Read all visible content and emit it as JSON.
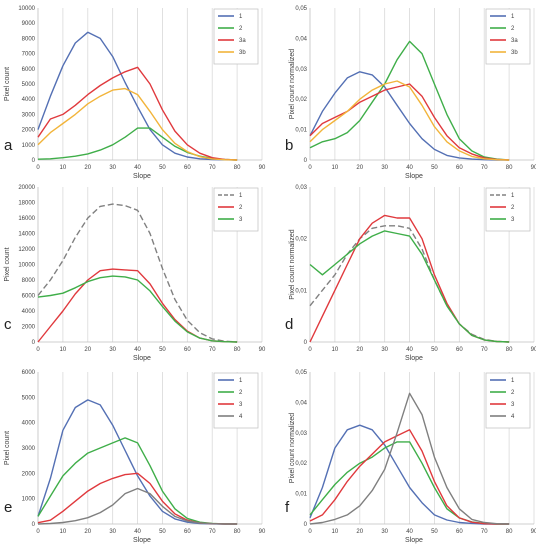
{
  "chart_data": [
    {
      "panel_label": "a",
      "type": "line",
      "xlabel": "Slope",
      "ylabel": "Pixel count",
      "xlim": [
        0,
        90
      ],
      "ylim": [
        0,
        10000
      ],
      "xticks": [
        "0",
        "10",
        "20",
        "30",
        "40",
        "50",
        "60",
        "70",
        "80",
        "90"
      ],
      "yticks": [
        "0",
        "1000",
        "2000",
        "3000",
        "4000",
        "5000",
        "6000",
        "7000",
        "8000",
        "9000",
        "10000"
      ],
      "grid": "vertical",
      "legend": "top-right",
      "series": [
        {
          "name": "1",
          "color": "#5470b4",
          "x": [
            0,
            5,
            10,
            15,
            20,
            25,
            30,
            35,
            40,
            45,
            50,
            55,
            60,
            65,
            70,
            75,
            80
          ],
          "y": [
            2000,
            4200,
            6200,
            7700,
            8400,
            8000,
            6800,
            5100,
            3500,
            2000,
            1000,
            450,
            200,
            80,
            30,
            10,
            0
          ]
        },
        {
          "name": "2",
          "color": "#3fae49",
          "x": [
            0,
            5,
            10,
            15,
            20,
            25,
            30,
            35,
            40,
            45,
            50,
            55,
            60,
            65,
            70,
            75,
            80
          ],
          "y": [
            50,
            80,
            150,
            250,
            400,
            650,
            1000,
            1500,
            2100,
            2100,
            1500,
            900,
            500,
            250,
            100,
            30,
            0
          ]
        },
        {
          "name": "3a",
          "color": "#e0393d",
          "x": [
            0,
            5,
            10,
            15,
            20,
            25,
            30,
            35,
            40,
            45,
            50,
            55,
            60,
            65,
            70,
            75,
            80
          ],
          "y": [
            1500,
            2700,
            3000,
            3600,
            4300,
            4900,
            5400,
            5800,
            6100,
            5000,
            3300,
            1900,
            1000,
            450,
            150,
            40,
            0
          ]
        },
        {
          "name": "3b",
          "color": "#f2b43a",
          "x": [
            0,
            5,
            10,
            15,
            20,
            25,
            30,
            35,
            40,
            45,
            50,
            55,
            60,
            65,
            70,
            75,
            80
          ],
          "y": [
            1000,
            1800,
            2400,
            3000,
            3700,
            4200,
            4600,
            4700,
            4300,
            3200,
            2000,
            1100,
            550,
            220,
            70,
            20,
            0
          ]
        }
      ]
    },
    {
      "panel_label": "b",
      "type": "line",
      "xlabel": "Slope",
      "ylabel": "Pixel count normalized",
      "xlim": [
        0,
        90
      ],
      "ylim": [
        0,
        0.05
      ],
      "xticks": [
        "0",
        "10",
        "20",
        "30",
        "40",
        "50",
        "60",
        "70",
        "80",
        "90"
      ],
      "yticks": [
        "0",
        "0,01",
        "0,02",
        "0,03",
        "0,04",
        "0,05"
      ],
      "grid": "vertical",
      "legend": "top-right",
      "series": [
        {
          "name": "1",
          "color": "#5470b4",
          "x": [
            0,
            5,
            10,
            15,
            20,
            25,
            30,
            35,
            40,
            45,
            50,
            55,
            60,
            65,
            70,
            75,
            80
          ],
          "y": [
            0.008,
            0.016,
            0.022,
            0.027,
            0.029,
            0.028,
            0.024,
            0.018,
            0.012,
            0.007,
            0.0035,
            0.0015,
            0.0007,
            0.0003,
            0.0001,
            0,
            0
          ]
        },
        {
          "name": "2",
          "color": "#3fae49",
          "x": [
            0,
            5,
            10,
            15,
            20,
            25,
            30,
            35,
            40,
            45,
            50,
            55,
            60,
            65,
            70,
            75,
            80
          ],
          "y": [
            0.004,
            0.006,
            0.007,
            0.009,
            0.013,
            0.019,
            0.025,
            0.033,
            0.039,
            0.035,
            0.025,
            0.015,
            0.007,
            0.003,
            0.001,
            0.0003,
            0
          ]
        },
        {
          "name": "3a",
          "color": "#e0393d",
          "x": [
            0,
            5,
            10,
            15,
            20,
            25,
            30,
            35,
            40,
            45,
            50,
            55,
            60,
            65,
            70,
            75,
            80
          ],
          "y": [
            0.008,
            0.012,
            0.014,
            0.016,
            0.019,
            0.021,
            0.023,
            0.024,
            0.025,
            0.021,
            0.014,
            0.008,
            0.004,
            0.002,
            0.0007,
            0.0002,
            0
          ]
        },
        {
          "name": "3b",
          "color": "#f2b43a",
          "x": [
            0,
            5,
            10,
            15,
            20,
            25,
            30,
            35,
            40,
            45,
            50,
            55,
            60,
            65,
            70,
            75,
            80
          ],
          "y": [
            0.006,
            0.01,
            0.013,
            0.016,
            0.02,
            0.023,
            0.025,
            0.026,
            0.024,
            0.018,
            0.011,
            0.006,
            0.003,
            0.0012,
            0.0004,
            0.0001,
            0
          ]
        }
      ]
    },
    {
      "panel_label": "c",
      "type": "line",
      "xlabel": "Slope",
      "ylabel": "Pixel count",
      "xlim": [
        0,
        90
      ],
      "ylim": [
        0,
        20000
      ],
      "xticks": [
        "0",
        "10",
        "20",
        "30",
        "40",
        "50",
        "60",
        "70",
        "80",
        "90"
      ],
      "yticks": [
        "0",
        "2000",
        "4000",
        "6000",
        "8000",
        "10000",
        "12000",
        "14000",
        "16000",
        "18000",
        "20000"
      ],
      "grid": "vertical",
      "legend": "top-right",
      "series": [
        {
          "name": "1",
          "color": "#808080",
          "dash": true,
          "x": [
            0,
            5,
            10,
            15,
            20,
            25,
            30,
            35,
            40,
            45,
            50,
            55,
            60,
            65,
            70,
            75,
            80
          ],
          "y": [
            6000,
            8000,
            10500,
            13500,
            16000,
            17500,
            17800,
            17600,
            17000,
            14000,
            9500,
            5500,
            2800,
            1200,
            400,
            100,
            0
          ]
        },
        {
          "name": "2",
          "color": "#e0393d",
          "x": [
            0,
            5,
            10,
            15,
            20,
            25,
            30,
            35,
            40,
            45,
            50,
            55,
            60,
            65,
            70,
            75,
            80
          ],
          "y": [
            0,
            2000,
            4000,
            6200,
            8000,
            9200,
            9400,
            9300,
            9200,
            7500,
            5000,
            2900,
            1400,
            500,
            150,
            40,
            0
          ]
        },
        {
          "name": "3",
          "color": "#3fae49",
          "x": [
            0,
            5,
            10,
            15,
            20,
            25,
            30,
            35,
            40,
            45,
            50,
            55,
            60,
            65,
            70,
            75,
            80
          ],
          "y": [
            5800,
            6000,
            6300,
            7000,
            7800,
            8300,
            8500,
            8400,
            8000,
            6600,
            4600,
            2700,
            1300,
            500,
            150,
            40,
            0
          ]
        }
      ]
    },
    {
      "panel_label": "d",
      "type": "line",
      "xlabel": "Slope",
      "ylabel": "Pixel count normalized",
      "xlim": [
        0,
        90
      ],
      "ylim": [
        0,
        0.03
      ],
      "xticks": [
        "0",
        "10",
        "20",
        "30",
        "40",
        "50",
        "60",
        "70",
        "80",
        "90"
      ],
      "yticks": [
        "0",
        "0,01",
        "0,02",
        "0,03"
      ],
      "grid": "vertical",
      "legend": "top-right",
      "series": [
        {
          "name": "1",
          "color": "#808080",
          "dash": true,
          "x": [
            0,
            5,
            10,
            15,
            20,
            25,
            30,
            35,
            40,
            45,
            50,
            55,
            60,
            65,
            70,
            75,
            80
          ],
          "y": [
            0.007,
            0.01,
            0.013,
            0.017,
            0.02,
            0.022,
            0.0225,
            0.0225,
            0.022,
            0.018,
            0.012,
            0.007,
            0.0035,
            0.0015,
            0.0005,
            0.0001,
            0
          ]
        },
        {
          "name": "2",
          "color": "#e0393d",
          "x": [
            0,
            5,
            10,
            15,
            20,
            25,
            30,
            35,
            40,
            45,
            50,
            55,
            60,
            65,
            70,
            75,
            80
          ],
          "y": [
            0,
            0.005,
            0.01,
            0.015,
            0.02,
            0.023,
            0.0245,
            0.024,
            0.024,
            0.02,
            0.013,
            0.0075,
            0.0035,
            0.0013,
            0.0004,
            0.0001,
            0
          ]
        },
        {
          "name": "3",
          "color": "#3fae49",
          "x": [
            0,
            5,
            10,
            15,
            20,
            25,
            30,
            35,
            40,
            45,
            50,
            55,
            60,
            65,
            70,
            75,
            80
          ],
          "y": [
            0.015,
            0.013,
            0.015,
            0.017,
            0.019,
            0.0205,
            0.0215,
            0.021,
            0.0205,
            0.017,
            0.012,
            0.007,
            0.0035,
            0.0013,
            0.0004,
            0.0001,
            0
          ]
        }
      ]
    },
    {
      "panel_label": "e",
      "type": "line",
      "xlabel": "Slope",
      "ylabel": "Pixel count",
      "xlim": [
        0,
        90
      ],
      "ylim": [
        0,
        6000
      ],
      "xticks": [
        "0",
        "10",
        "20",
        "30",
        "40",
        "50",
        "60",
        "70",
        "80",
        "90"
      ],
      "yticks": [
        "0",
        "1000",
        "2000",
        "3000",
        "4000",
        "5000",
        "6000"
      ],
      "grid": "vertical",
      "legend": "top-right",
      "series": [
        {
          "name": "1",
          "color": "#5470b4",
          "x": [
            0,
            5,
            10,
            15,
            20,
            25,
            30,
            35,
            40,
            45,
            50,
            55,
            60,
            65,
            70,
            75,
            80
          ],
          "y": [
            300,
            1800,
            3700,
            4600,
            4900,
            4700,
            3900,
            2900,
            1900,
            1100,
            500,
            200,
            70,
            20,
            5,
            0,
            0
          ]
        },
        {
          "name": "2",
          "color": "#3fae49",
          "x": [
            0,
            5,
            10,
            15,
            20,
            25,
            30,
            35,
            40,
            45,
            50,
            55,
            60,
            65,
            70,
            75,
            80
          ],
          "y": [
            300,
            1100,
            1900,
            2400,
            2800,
            3000,
            3200,
            3400,
            3200,
            2300,
            1300,
            600,
            220,
            70,
            20,
            5,
            0
          ]
        },
        {
          "name": "3",
          "color": "#e0393d",
          "x": [
            0,
            5,
            10,
            15,
            20,
            25,
            30,
            35,
            40,
            45,
            50,
            55,
            60,
            65,
            70,
            75,
            80
          ],
          "y": [
            50,
            150,
            500,
            900,
            1300,
            1600,
            1800,
            1950,
            2000,
            1600,
            900,
            400,
            150,
            40,
            10,
            0,
            0
          ]
        },
        {
          "name": "4",
          "color": "#7f7f7f",
          "x": [
            0,
            5,
            10,
            15,
            20,
            25,
            30,
            35,
            40,
            45,
            50,
            55,
            60,
            65,
            70,
            75,
            80
          ],
          "y": [
            0,
            20,
            60,
            130,
            250,
            450,
            750,
            1200,
            1400,
            1200,
            700,
            300,
            120,
            40,
            10,
            0,
            0
          ]
        }
      ]
    },
    {
      "panel_label": "f",
      "type": "line",
      "xlabel": "Slope",
      "ylabel": "Pixel count normalized",
      "xlim": [
        0,
        90
      ],
      "ylim": [
        0,
        0.05
      ],
      "xticks": [
        "0",
        "10",
        "20",
        "30",
        "40",
        "50",
        "60",
        "70",
        "80",
        "90"
      ],
      "yticks": [
        "0",
        "0,01",
        "0,02",
        "0,03",
        "0,04",
        "0,05"
      ],
      "grid": "vertical",
      "legend": "top-right",
      "series": [
        {
          "name": "1",
          "color": "#5470b4",
          "x": [
            0,
            5,
            10,
            15,
            20,
            25,
            30,
            35,
            40,
            45,
            50,
            55,
            60,
            65,
            70,
            75,
            80
          ],
          "y": [
            0.002,
            0.012,
            0.025,
            0.031,
            0.0325,
            0.031,
            0.026,
            0.019,
            0.012,
            0.007,
            0.003,
            0.0013,
            0.0005,
            0.0002,
            0,
            0,
            0
          ]
        },
        {
          "name": "2",
          "color": "#3fae49",
          "x": [
            0,
            5,
            10,
            15,
            20,
            25,
            30,
            35,
            40,
            45,
            50,
            55,
            60,
            65,
            70,
            75,
            80
          ],
          "y": [
            0.003,
            0.008,
            0.013,
            0.017,
            0.02,
            0.022,
            0.025,
            0.027,
            0.027,
            0.02,
            0.012,
            0.005,
            0.002,
            0.0007,
            0.0002,
            0,
            0
          ]
        },
        {
          "name": "3",
          "color": "#e0393d",
          "x": [
            0,
            5,
            10,
            15,
            20,
            25,
            30,
            35,
            40,
            45,
            50,
            55,
            60,
            65,
            70,
            75,
            80
          ],
          "y": [
            0.001,
            0.003,
            0.008,
            0.014,
            0.019,
            0.023,
            0.027,
            0.029,
            0.031,
            0.024,
            0.014,
            0.006,
            0.002,
            0.0006,
            0.0001,
            0,
            0
          ]
        },
        {
          "name": "4",
          "color": "#7f7f7f",
          "x": [
            0,
            5,
            10,
            15,
            20,
            25,
            30,
            35,
            40,
            45,
            50,
            55,
            60,
            65,
            70,
            75,
            80
          ],
          "y": [
            0,
            0.0005,
            0.0015,
            0.003,
            0.006,
            0.011,
            0.018,
            0.03,
            0.043,
            0.036,
            0.022,
            0.012,
            0.005,
            0.0015,
            0.0005,
            0.0001,
            0
          ]
        }
      ]
    }
  ]
}
